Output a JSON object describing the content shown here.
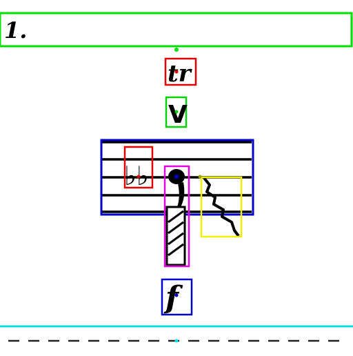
{
  "header": {
    "label": "1."
  },
  "symbols": {
    "trill": "tr",
    "breath_mark": "V",
    "flats": "♭♭",
    "dynamic": "f"
  },
  "box_colors": {
    "header": "#00e000",
    "trill": "#e00000",
    "breath_mark": "#00d000",
    "staff": "#0000c8",
    "accidentals": "#e00000",
    "note": "#e000e0",
    "squiggle": "#f0f000",
    "dynamic": "#0000c8",
    "separator": "#00e0e0"
  },
  "colors": {
    "ink": "#000000",
    "background": "#ffffff",
    "dash": "#222222"
  }
}
